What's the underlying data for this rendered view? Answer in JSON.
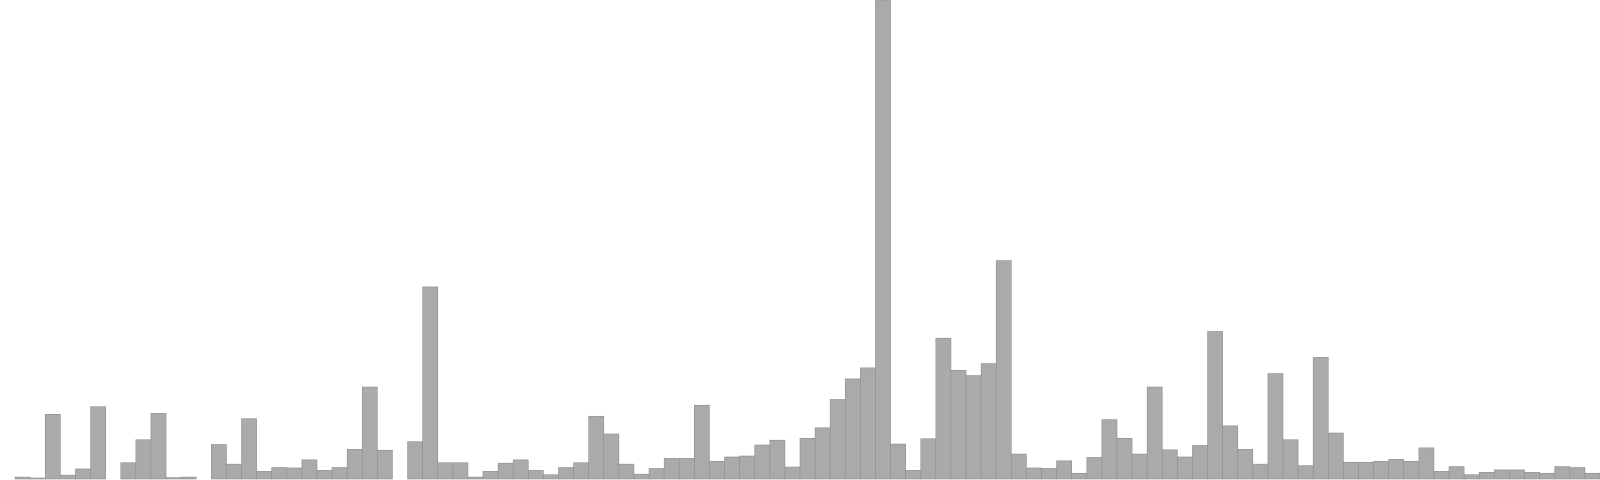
{
  "chart_data": {
    "type": "bar",
    "title": "",
    "xlabel": "",
    "ylabel": "",
    "ylim": [
      0,
      100
    ],
    "bar_color": "#aaaaaa",
    "values": [
      0,
      0.4,
      0.2,
      13.5,
      0.8,
      2.1,
      15.1,
      0,
      3.4,
      8.2,
      13.7,
      0.3,
      0.4,
      0,
      7.2,
      3.1,
      12.6,
      1.6,
      2.4,
      2.3,
      4.0,
      1.8,
      2.4,
      6.2,
      19.2,
      6.0,
      0,
      7.8,
      40.1,
      3.4,
      3.4,
      0.4,
      1.6,
      3.3,
      4.0,
      1.8,
      0.9,
      2.4,
      3.4,
      13.1,
      9.4,
      3.1,
      1.0,
      2.2,
      4.3,
      4.3,
      15.4,
      3.7,
      4.6,
      4.8,
      7.1,
      8.1,
      2.5,
      8.5,
      10.7,
      16.6,
      20.9,
      23.2,
      100,
      7.3,
      1.8,
      8.4,
      29.4,
      22.7,
      21.6,
      24.1,
      45.6,
      5.2,
      2.3,
      2.2,
      3.8,
      1.2,
      4.5,
      12.4,
      8.5,
      5.2,
      19.2,
      6.1,
      4.6,
      7.0,
      30.8,
      11.1,
      6.2,
      3.1,
      22.0,
      8.2,
      2.8,
      25.4,
      9.6,
      3.5,
      3.5,
      3.7,
      4.1,
      3.7,
      6.5,
      1.6,
      2.6,
      0.9,
      1.4,
      1.9,
      1.9,
      1.4,
      1.2,
      2.6,
      2.4,
      1.2
    ]
  }
}
